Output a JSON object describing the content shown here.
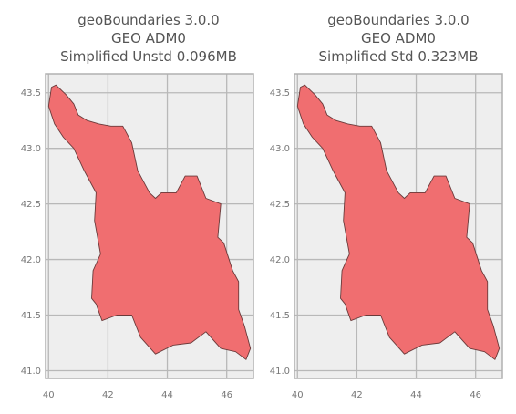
{
  "figure": {
    "panels": [
      {
        "title_lines": [
          "geoBoundaries 3.0.0",
          "GEO ADM0",
          "Simplified Unstd 0.096MB"
        ],
        "x_ticks": [
          "40",
          "42",
          "44",
          "46"
        ],
        "y_ticks": [
          "43.5",
          "43.0",
          "42.5",
          "42.0",
          "41.5",
          "41.0"
        ]
      },
      {
        "title_lines": [
          "geoBoundaries 3.0.0",
          "GEO ADM0",
          "Simplified Std 0.323MB"
        ],
        "x_ticks": [
          "40",
          "42",
          "44",
          "46"
        ],
        "y_ticks": [
          "43.5",
          "43.0",
          "42.5",
          "42.0",
          "41.5",
          "41.0"
        ]
      }
    ]
  },
  "colors": {
    "plot_bg": "#eeeeee",
    "grid": "#b8b8b8",
    "frame": "#b0b0b0",
    "fill": "#f06e70",
    "outline": "#6a3a3a"
  },
  "chart_data": [
    {
      "type": "map",
      "region": "GEO ADM0",
      "xlim": [
        39.9,
        46.9
      ],
      "ylim": [
        40.93,
        43.67
      ],
      "x_ticks": [
        40,
        42,
        44,
        46
      ],
      "y_ticks": [
        41.0,
        41.5,
        42.0,
        42.5,
        43.0,
        43.5
      ],
      "grid": true,
      "outline": [
        [
          40.0,
          43.38
        ],
        [
          40.1,
          43.55
        ],
        [
          40.25,
          43.57
        ],
        [
          40.6,
          43.48
        ],
        [
          40.85,
          43.4
        ],
        [
          41.0,
          43.3
        ],
        [
          41.3,
          43.25
        ],
        [
          41.7,
          43.22
        ],
        [
          42.1,
          43.2
        ],
        [
          42.5,
          43.2
        ],
        [
          42.8,
          43.05
        ],
        [
          43.0,
          42.8
        ],
        [
          43.4,
          42.6
        ],
        [
          43.6,
          42.55
        ],
        [
          43.8,
          42.6
        ],
        [
          44.3,
          42.6
        ],
        [
          44.6,
          42.75
        ],
        [
          45.0,
          42.75
        ],
        [
          45.3,
          42.55
        ],
        [
          45.8,
          42.5
        ],
        [
          45.7,
          42.2
        ],
        [
          45.9,
          42.15
        ],
        [
          46.2,
          41.9
        ],
        [
          46.4,
          41.8
        ],
        [
          46.4,
          41.55
        ],
        [
          46.6,
          41.4
        ],
        [
          46.8,
          41.2
        ],
        [
          46.65,
          41.1
        ],
        [
          46.3,
          41.17
        ],
        [
          45.8,
          41.2
        ],
        [
          45.3,
          41.35
        ],
        [
          44.8,
          41.25
        ],
        [
          44.2,
          41.23
        ],
        [
          43.6,
          41.15
        ],
        [
          43.1,
          41.3
        ],
        [
          42.8,
          41.5
        ],
        [
          42.3,
          41.5
        ],
        [
          41.8,
          41.45
        ],
        [
          41.6,
          41.6
        ],
        [
          41.45,
          41.65
        ],
        [
          41.5,
          41.9
        ],
        [
          41.75,
          42.05
        ],
        [
          41.55,
          42.35
        ],
        [
          41.6,
          42.6
        ],
        [
          41.2,
          42.8
        ],
        [
          40.85,
          43.0
        ],
        [
          40.5,
          43.1
        ],
        [
          40.2,
          43.22
        ],
        [
          40.0,
          43.38
        ]
      ]
    },
    {
      "type": "map",
      "region": "GEO ADM0",
      "xlim": [
        39.9,
        46.9
      ],
      "ylim": [
        40.93,
        43.67
      ],
      "x_ticks": [
        40,
        42,
        44,
        46
      ],
      "y_ticks": [
        41.0,
        41.5,
        42.0,
        42.5,
        43.0,
        43.5
      ],
      "grid": true,
      "outline": [
        [
          40.0,
          43.38
        ],
        [
          40.1,
          43.55
        ],
        [
          40.25,
          43.57
        ],
        [
          40.6,
          43.48
        ],
        [
          40.85,
          43.4
        ],
        [
          41.0,
          43.3
        ],
        [
          41.3,
          43.25
        ],
        [
          41.7,
          43.22
        ],
        [
          42.1,
          43.2
        ],
        [
          42.5,
          43.2
        ],
        [
          42.8,
          43.05
        ],
        [
          43.0,
          42.8
        ],
        [
          43.4,
          42.6
        ],
        [
          43.6,
          42.55
        ],
        [
          43.8,
          42.6
        ],
        [
          44.3,
          42.6
        ],
        [
          44.6,
          42.75
        ],
        [
          45.0,
          42.75
        ],
        [
          45.3,
          42.55
        ],
        [
          45.8,
          42.5
        ],
        [
          45.7,
          42.2
        ],
        [
          45.9,
          42.15
        ],
        [
          46.2,
          41.9
        ],
        [
          46.4,
          41.8
        ],
        [
          46.4,
          41.55
        ],
        [
          46.6,
          41.4
        ],
        [
          46.8,
          41.2
        ],
        [
          46.65,
          41.1
        ],
        [
          46.3,
          41.17
        ],
        [
          45.8,
          41.2
        ],
        [
          45.3,
          41.35
        ],
        [
          44.8,
          41.25
        ],
        [
          44.2,
          41.23
        ],
        [
          43.6,
          41.15
        ],
        [
          43.1,
          41.3
        ],
        [
          42.8,
          41.5
        ],
        [
          42.3,
          41.5
        ],
        [
          41.8,
          41.45
        ],
        [
          41.6,
          41.6
        ],
        [
          41.45,
          41.65
        ],
        [
          41.5,
          41.9
        ],
        [
          41.75,
          42.05
        ],
        [
          41.55,
          42.35
        ],
        [
          41.6,
          42.6
        ],
        [
          41.2,
          42.8
        ],
        [
          40.85,
          43.0
        ],
        [
          40.5,
          43.1
        ],
        [
          40.2,
          43.22
        ],
        [
          40.0,
          43.38
        ]
      ]
    }
  ]
}
